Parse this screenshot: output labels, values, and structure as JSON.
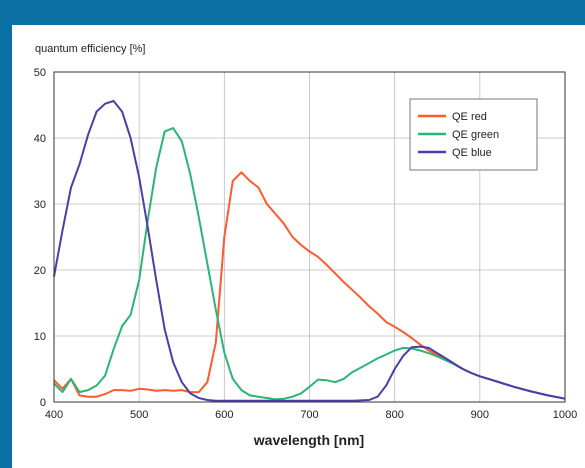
{
  "chart_data": {
    "type": "line",
    "title": "",
    "ylabel": "quantum efficiency [%]",
    "xlabel": "wavelength [nm]",
    "xlim": [
      400,
      1000
    ],
    "ylim": [
      0,
      50
    ],
    "x_ticks": [
      "400",
      "500",
      "600",
      "700",
      "800",
      "900",
      "1000"
    ],
    "y_ticks": [
      "0",
      "10",
      "20",
      "30",
      "40",
      "50"
    ],
    "legend_position": "top-right",
    "grid": true,
    "series": [
      {
        "name": "QE red",
        "color": "#ff5a2e",
        "points": [
          [
            400,
            3.3
          ],
          [
            410,
            2.0
          ],
          [
            420,
            3.5
          ],
          [
            430,
            1.0
          ],
          [
            440,
            0.8
          ],
          [
            450,
            0.8
          ],
          [
            460,
            1.2
          ],
          [
            470,
            1.8
          ],
          [
            480,
            1.8
          ],
          [
            490,
            1.7
          ],
          [
            500,
            2.0
          ],
          [
            510,
            1.9
          ],
          [
            520,
            1.7
          ],
          [
            530,
            1.8
          ],
          [
            540,
            1.7
          ],
          [
            550,
            1.8
          ],
          [
            560,
            1.5
          ],
          [
            570,
            1.5
          ],
          [
            580,
            3.0
          ],
          [
            590,
            9.0
          ],
          [
            600,
            25.0
          ],
          [
            610,
            33.5
          ],
          [
            620,
            34.8
          ],
          [
            630,
            33.5
          ],
          [
            640,
            32.5
          ],
          [
            650,
            30.0
          ],
          [
            660,
            28.5
          ],
          [
            670,
            27.0
          ],
          [
            680,
            25.0
          ],
          [
            690,
            23.8
          ],
          [
            700,
            22.8
          ],
          [
            710,
            22.0
          ],
          [
            720,
            20.8
          ],
          [
            730,
            19.5
          ],
          [
            740,
            18.2
          ],
          [
            750,
            17.0
          ],
          [
            760,
            15.8
          ],
          [
            770,
            14.5
          ],
          [
            780,
            13.4
          ],
          [
            790,
            12.1
          ],
          [
            800,
            11.4
          ],
          [
            810,
            10.6
          ],
          [
            820,
            9.7
          ],
          [
            830,
            8.7
          ],
          [
            840,
            7.8
          ],
          [
            850,
            7.1
          ],
          [
            860,
            6.4
          ],
          [
            870,
            5.7
          ],
          [
            880,
            5.0
          ],
          [
            890,
            4.4
          ],
          [
            900,
            3.9
          ],
          [
            920,
            3.1
          ],
          [
            940,
            2.3
          ],
          [
            960,
            1.6
          ],
          [
            980,
            1.0
          ],
          [
            1000,
            0.5
          ]
        ]
      },
      {
        "name": "QE green",
        "color": "#2bb673",
        "points": [
          [
            400,
            2.8
          ],
          [
            410,
            1.5
          ],
          [
            420,
            3.5
          ],
          [
            430,
            1.5
          ],
          [
            440,
            1.8
          ],
          [
            450,
            2.5
          ],
          [
            460,
            4.0
          ],
          [
            470,
            8.0
          ],
          [
            480,
            11.5
          ],
          [
            490,
            13.2
          ],
          [
            500,
            18.5
          ],
          [
            510,
            27.5
          ],
          [
            520,
            35.5
          ],
          [
            530,
            41.0
          ],
          [
            540,
            41.5
          ],
          [
            550,
            39.5
          ],
          [
            560,
            34.5
          ],
          [
            570,
            28.0
          ],
          [
            580,
            21.0
          ],
          [
            590,
            14.0
          ],
          [
            600,
            7.5
          ],
          [
            610,
            3.5
          ],
          [
            620,
            1.8
          ],
          [
            630,
            1.0
          ],
          [
            640,
            0.8
          ],
          [
            650,
            0.6
          ],
          [
            660,
            0.4
          ],
          [
            670,
            0.5
          ],
          [
            680,
            0.8
          ],
          [
            690,
            1.3
          ],
          [
            700,
            2.3
          ],
          [
            710,
            3.4
          ],
          [
            720,
            3.3
          ],
          [
            730,
            3.0
          ],
          [
            740,
            3.5
          ],
          [
            750,
            4.5
          ],
          [
            760,
            5.2
          ],
          [
            770,
            5.9
          ],
          [
            780,
            6.6
          ],
          [
            790,
            7.2
          ],
          [
            800,
            7.8
          ],
          [
            810,
            8.2
          ],
          [
            820,
            8.1
          ],
          [
            830,
            7.8
          ],
          [
            840,
            7.4
          ],
          [
            850,
            6.9
          ],
          [
            860,
            6.3
          ],
          [
            870,
            5.7
          ],
          [
            880,
            5.0
          ],
          [
            890,
            4.4
          ],
          [
            900,
            3.9
          ],
          [
            920,
            3.1
          ],
          [
            940,
            2.3
          ],
          [
            960,
            1.6
          ],
          [
            980,
            1.0
          ],
          [
            1000,
            0.5
          ]
        ]
      },
      {
        "name": "QE blue",
        "color": "#4a3fa8",
        "points": [
          [
            400,
            19.0
          ],
          [
            410,
            26.0
          ],
          [
            420,
            32.5
          ],
          [
            430,
            36.0
          ],
          [
            440,
            40.5
          ],
          [
            450,
            44.0
          ],
          [
            460,
            45.2
          ],
          [
            470,
            45.6
          ],
          [
            480,
            44.0
          ],
          [
            490,
            40.0
          ],
          [
            500,
            34.0
          ],
          [
            510,
            26.5
          ],
          [
            520,
            18.5
          ],
          [
            530,
            11.0
          ],
          [
            540,
            6.0
          ],
          [
            550,
            3.0
          ],
          [
            560,
            1.3
          ],
          [
            570,
            0.6
          ],
          [
            580,
            0.3
          ],
          [
            590,
            0.2
          ],
          [
            600,
            0.2
          ],
          [
            650,
            0.2
          ],
          [
            700,
            0.2
          ],
          [
            750,
            0.2
          ],
          [
            770,
            0.3
          ],
          [
            780,
            0.8
          ],
          [
            790,
            2.5
          ],
          [
            800,
            5.0
          ],
          [
            810,
            7.0
          ],
          [
            820,
            8.3
          ],
          [
            830,
            8.4
          ],
          [
            840,
            8.2
          ],
          [
            850,
            7.4
          ],
          [
            860,
            6.6
          ],
          [
            870,
            5.8
          ],
          [
            880,
            5.0
          ],
          [
            890,
            4.4
          ],
          [
            900,
            3.9
          ],
          [
            920,
            3.1
          ],
          [
            940,
            2.3
          ],
          [
            960,
            1.6
          ],
          [
            980,
            1.0
          ],
          [
            1000,
            0.5
          ]
        ]
      }
    ]
  }
}
